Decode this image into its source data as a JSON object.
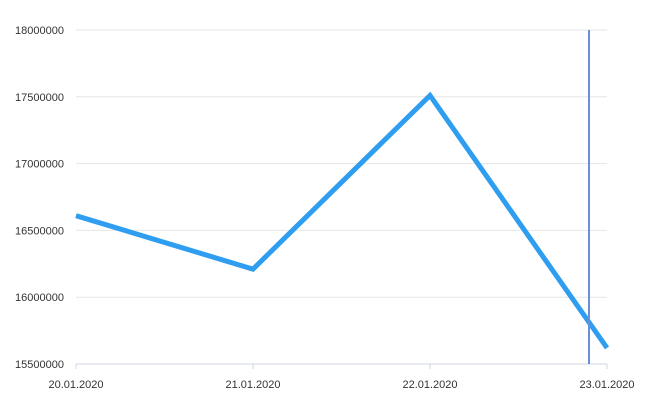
{
  "chart_data": {
    "type": "line",
    "title": "",
    "xlabel": "",
    "ylabel": "",
    "categories": [
      "20.01.2020",
      "21.01.2020",
      "22.01.2020",
      "23.01.2020"
    ],
    "series": [
      {
        "values": [
          16610000,
          16210000,
          17510000,
          15620000
        ],
        "color": "#2f9ef0"
      }
    ],
    "ylim": [
      15500000,
      18000000
    ],
    "yticks": [
      15500000,
      16000000,
      16500000,
      17000000,
      17500000,
      18000000
    ],
    "ytick_labels": [
      "15500000",
      "16000000",
      "16500000",
      "17000000",
      "17500000",
      "18000000"
    ],
    "grid": true,
    "legend": "none",
    "cursor": {
      "x": "23.01.2020",
      "color": "#6b8fd6"
    }
  }
}
